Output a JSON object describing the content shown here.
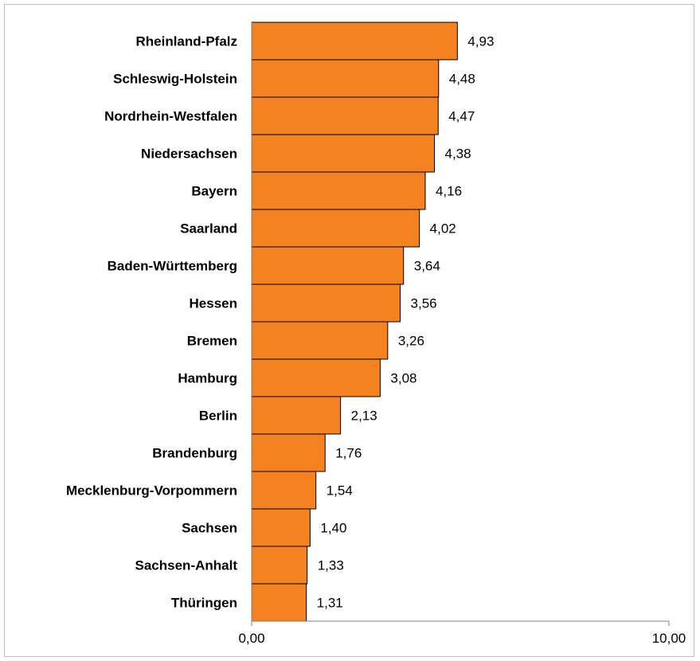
{
  "chart_data": {
    "type": "bar",
    "orientation": "horizontal",
    "categories": [
      "Rheinland-Pfalz",
      "Schleswig-Holstein",
      "Nordrhein-Westfalen",
      "Niedersachsen",
      "Bayern",
      "Saarland",
      "Baden-Württemberg",
      "Hessen",
      "Bremen",
      "Hamburg",
      "Berlin",
      "Brandenburg",
      "Mecklenburg-Vorpommern",
      "Sachsen",
      "Sachsen-Anhalt",
      "Thüringen"
    ],
    "values": [
      4.93,
      4.48,
      4.47,
      4.38,
      4.16,
      4.02,
      3.64,
      3.56,
      3.26,
      3.08,
      2.13,
      1.76,
      1.54,
      1.4,
      1.33,
      1.31
    ],
    "value_labels": [
      "4,93",
      "4,48",
      "4,47",
      "4,38",
      "4,16",
      "4,02",
      "3,64",
      "3,56",
      "3,26",
      "3,08",
      "2,13",
      "1,76",
      "1,54",
      "1,40",
      "1,33",
      "1,31"
    ],
    "xlim": [
      0,
      10
    ],
    "x_ticks": [
      "0,00",
      "10,00"
    ],
    "bar_color": "#f58220",
    "grid": false,
    "legend": "none"
  }
}
